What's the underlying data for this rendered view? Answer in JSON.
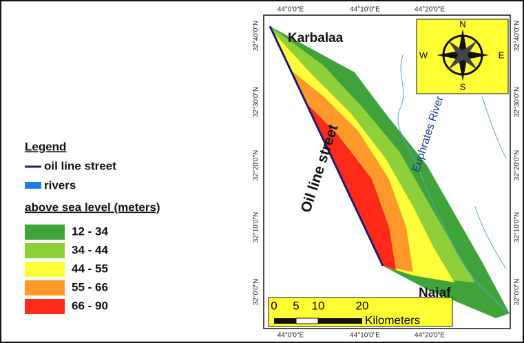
{
  "legend": {
    "title": "Legend",
    "items": [
      {
        "label": "oil line street",
        "color": "#1a1a6e"
      },
      {
        "label": "rivers",
        "color": "#1e7ee0"
      }
    ],
    "elevation_title": "above sea level (meters)",
    "classes": [
      {
        "label": "12 - 34",
        "color": "#3fa33a"
      },
      {
        "label": "34 - 44",
        "color": "#8fcf3a"
      },
      {
        "label": "44 - 55",
        "color": "#ffff3a"
      },
      {
        "label": "55 - 66",
        "color": "#ff9a2a"
      },
      {
        "label": "66 - 90",
        "color": "#ff2a1a"
      }
    ]
  },
  "map": {
    "places": [
      "Karbalaa",
      "Naiaf"
    ],
    "features": [
      "Oil line street",
      "Euphrates River"
    ],
    "longitude_labels": [
      "44°0'0\"E",
      "44°10'0\"E",
      "44°20'0\"E"
    ],
    "latitude_labels": [
      "32°40'0\"N",
      "32°30'0\"N",
      "32°20'0\"N",
      "32°10'0\"N",
      "32°0'0\"N"
    ],
    "compass": [
      "N",
      "E",
      "S",
      "W"
    ],
    "scale_bar": {
      "ticks": [
        "0",
        "5",
        "10",
        "20"
      ],
      "unit": "Kilometers"
    }
  }
}
